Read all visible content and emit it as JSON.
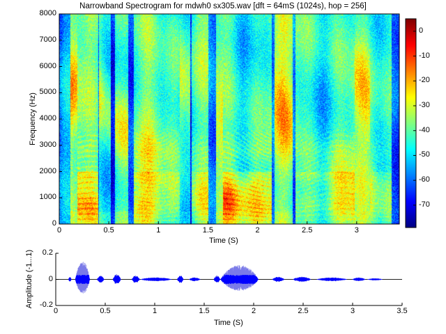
{
  "chart_data": [
    {
      "type": "heatmap",
      "title": "Narrowband Spectrogram for mdwh0 sx305.wav [dft = 64mS (1024s), hop = 256]",
      "xlabel": "Time (S)",
      "ylabel": "Frequency (Hz)",
      "xlim": [
        0,
        3.43
      ],
      "ylim": [
        0,
        8000
      ],
      "xticks": [
        "0",
        "0.5",
        "1",
        "1.5",
        "2",
        "2.5",
        "3"
      ],
      "xtick_values": [
        0,
        0.5,
        1,
        1.5,
        2,
        2.5,
        3
      ],
      "yticks": [
        "0",
        "1000",
        "2000",
        "3000",
        "4000",
        "5000",
        "6000",
        "7000",
        "8000"
      ],
      "ytick_values": [
        0,
        1000,
        2000,
        3000,
        4000,
        5000,
        6000,
        7000,
        8000
      ],
      "colormap": "jet",
      "colorbar": {
        "range": [
          -79,
          5
        ],
        "ticks": [
          "0",
          "-10",
          "-20",
          "-30",
          "-40",
          "-50",
          "-60",
          "-70"
        ],
        "tick_values": [
          0,
          -10,
          -20,
          -30,
          -40,
          -50,
          -60,
          -70
        ]
      }
    },
    {
      "type": "line",
      "xlabel": "Time (S)",
      "ylabel": "Amplitude (-1...1)",
      "xlim": [
        0,
        3.5
      ],
      "ylim": [
        -0.2,
        0.2
      ],
      "xticks": [
        "0",
        "0.5",
        "1",
        "1.5",
        "2",
        "2.5",
        "3",
        "3.5"
      ],
      "xtick_values": [
        0,
        0.5,
        1,
        1.5,
        2,
        2.5,
        3,
        3.5
      ],
      "yticks": [
        "0.2",
        "0",
        "-0.2"
      ],
      "ytick_values": [
        0.2,
        0,
        -0.2
      ],
      "color": "#0000ff",
      "segments": [
        {
          "start": 0.13,
          "end": 0.16,
          "peak": 0.02,
          "kind": "burst"
        },
        {
          "start": 0.2,
          "end": 0.37,
          "peak": 0.14,
          "kind": "voiced"
        },
        {
          "start": 0.42,
          "end": 0.5,
          "peak": 0.03,
          "kind": "fricative"
        },
        {
          "start": 0.58,
          "end": 0.67,
          "peak": 0.04,
          "kind": "fricative"
        },
        {
          "start": 0.77,
          "end": 0.86,
          "peak": 0.03,
          "kind": "voiced"
        },
        {
          "start": 0.86,
          "end": 1.23,
          "peak": 0.015,
          "kind": "voiced"
        },
        {
          "start": 1.23,
          "end": 1.3,
          "peak": 0.03,
          "kind": "fricative"
        },
        {
          "start": 1.35,
          "end": 1.48,
          "peak": 0.015,
          "kind": "voiced"
        },
        {
          "start": 1.6,
          "end": 1.67,
          "peak": 0.03,
          "kind": "fricative"
        },
        {
          "start": 1.67,
          "end": 2.12,
          "peak": 0.11,
          "kind": "voiced"
        },
        {
          "start": 2.19,
          "end": 2.33,
          "peak": 0.02,
          "kind": "fricative"
        },
        {
          "start": 2.4,
          "end": 2.61,
          "peak": 0.02,
          "kind": "voiced"
        },
        {
          "start": 2.64,
          "end": 3.0,
          "peak": 0.015,
          "kind": "voiced"
        },
        {
          "start": 3.0,
          "end": 3.15,
          "peak": 0.015,
          "kind": "fricative"
        },
        {
          "start": 3.15,
          "end": 3.33,
          "peak": 0.008,
          "kind": "voiced"
        }
      ]
    }
  ]
}
